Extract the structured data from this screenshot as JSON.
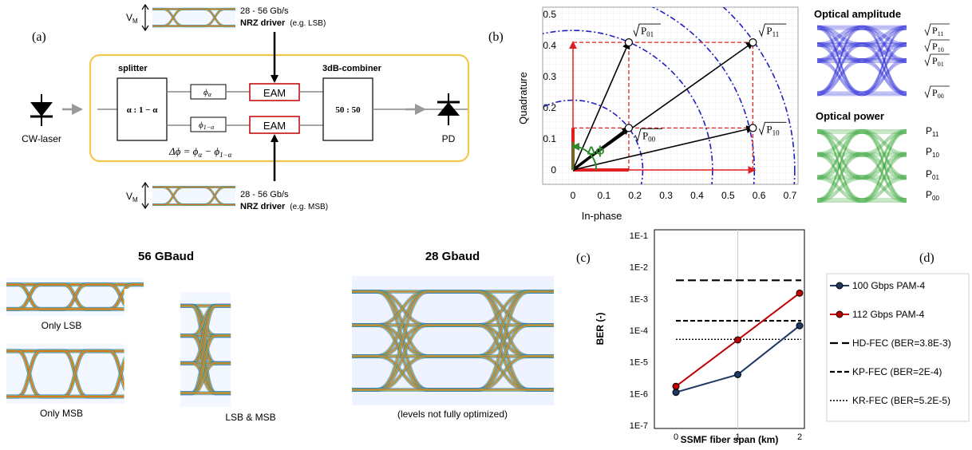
{
  "panels": {
    "a": {
      "label": "(a)",
      "top_driver": {
        "vm": "V",
        "vm_sub": "M",
        "rate": "28 - 56 Gb/s",
        "name": "NRZ driver",
        "note": "(e.g. LSB)"
      },
      "bottom_driver": {
        "vm": "V",
        "vm_sub": "M",
        "rate": "28 - 56 Gb/s",
        "name": "NRZ driver",
        "note": "(e.g. MSB)"
      },
      "splitter_title": "splitter",
      "splitter_ratio": "α : 1 − α",
      "phase_top": "ϕ",
      "phase_top_sub": "α",
      "phase_bottom": "ϕ",
      "phase_bottom_sub": "1−α",
      "eam_top": "EAM",
      "eam_bottom": "EAM",
      "combiner_title": "3dB-combiner",
      "combiner_ratio": "50 : 50",
      "delta_phi": "Δϕ = ϕ",
      "delta_phi_sub1": "α",
      "delta_phi_minus": " − ϕ",
      "delta_phi_sub2": "1−α",
      "laser": "CW-laser",
      "pd": "PD"
    },
    "b": {
      "label": "(b)",
      "chart_data": {
        "type": "scatter",
        "xlabel": "In-phase",
        "ylabel": "Quadrature",
        "xlim": [
          0,
          0.7
        ],
        "ylim": [
          0,
          0.5
        ],
        "xticks": [
          "0",
          "0.1",
          "0.2",
          "0.3",
          "0.4",
          "0.5",
          "0.6",
          "0.7"
        ],
        "yticks": [
          "0",
          "0.1",
          "0.2",
          "0.3",
          "0.4",
          "0.5"
        ],
        "points": [
          {
            "label": "P",
            "sub": "00",
            "x": 0.18,
            "y": 0.135
          },
          {
            "label": "P",
            "sub": "01",
            "x": 0.18,
            "y": 0.41
          },
          {
            "label": "P",
            "sub": "10",
            "x": 0.58,
            "y": 0.135
          },
          {
            "label": "P",
            "sub": "11",
            "x": 0.58,
            "y": 0.41
          }
        ],
        "delta_phi_label": "Δϕ",
        "circle_radii": [
          0.225,
          0.45,
          0.585,
          0.715
        ]
      },
      "amplitude_title": "Optical amplitude",
      "amplitude_levels": [
        {
          "label": "P",
          "sub": "11"
        },
        {
          "label": "P",
          "sub": "10"
        },
        {
          "label": "P",
          "sub": "01"
        },
        {
          "label": "P",
          "sub": "00"
        }
      ],
      "power_title": "Optical power",
      "power_levels": [
        {
          "label": "P",
          "sub": "11"
        },
        {
          "label": "P",
          "sub": "10"
        },
        {
          "label": "P",
          "sub": "01"
        },
        {
          "label": "P",
          "sub": "00"
        }
      ]
    },
    "c": {
      "label": "(c)",
      "title_56": "56 GBaud",
      "title_28": "28 Gbaud",
      "only_lsb": "Only LSB",
      "only_msb": "Only MSB",
      "combined": "LSB & MSB",
      "note_28": "(levels not fully optimized)"
    },
    "d": {
      "label": "(d)",
      "chart_data": {
        "type": "line",
        "xlabel": "SSMF fiber span (km)",
        "ylabel": "BER (-)",
        "x": [
          0,
          1,
          2
        ],
        "xticks": [
          "0",
          "1",
          "2"
        ],
        "ytick_labels": [
          "1E-7",
          "1E-6",
          "1E-5",
          "1E-4",
          "1E-3",
          "1E-2",
          "1E-1"
        ],
        "ylim_exp": [
          -7,
          -1
        ],
        "series": [
          {
            "name": "100 Gbps PAM-4",
            "color": "#1f3864",
            "values": [
              1.1e-06,
              4e-06,
              0.00014
            ]
          },
          {
            "name": "112 Gbps PAM-4",
            "color": "#c00000",
            "values": [
              1.7e-06,
              5e-05,
              0.0015
            ]
          }
        ],
        "thresholds": [
          {
            "name": "HD-FEC (BER=3.8E-3)",
            "value": 0.0038,
            "style": "dash-long"
          },
          {
            "name": "KP-FEC (BER=2E-4)",
            "value": 0.0002,
            "style": "dash"
          },
          {
            "name": "KR-FEC (BER=5.2E-5)",
            "value": 5.2e-05,
            "style": "dot"
          }
        ]
      }
    }
  },
  "colors": {
    "yellow_box": "#f2c94c",
    "red": "#d62020",
    "blue": "#1f1fbf",
    "green": "#2e8b2e",
    "eam_border": "#c00000"
  }
}
